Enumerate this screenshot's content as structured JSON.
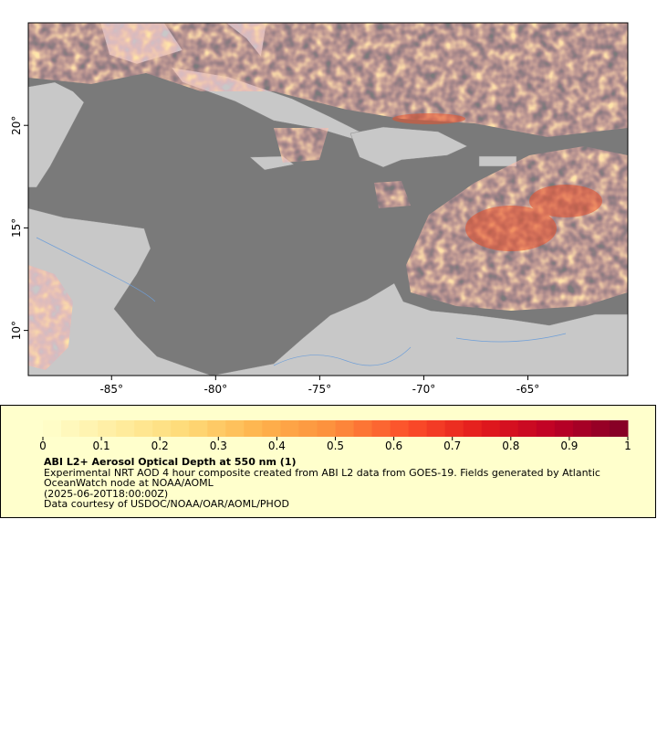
{
  "map": {
    "xlim": [
      -89,
      -60.2
    ],
    "ylim": [
      7.8,
      25
    ],
    "xticks": [
      {
        "value": -85,
        "label": "-85°"
      },
      {
        "value": -80,
        "label": "-80°"
      },
      {
        "value": -75,
        "label": "-75°"
      },
      {
        "value": -70,
        "label": "-70°"
      },
      {
        "value": -65,
        "label": "-65°"
      }
    ],
    "yticks": [
      {
        "value": 10,
        "label": "10°"
      },
      {
        "value": 15,
        "label": "15°"
      },
      {
        "value": 20,
        "label": "20°"
      }
    ]
  },
  "colorbar": {
    "range": [
      0,
      1
    ],
    "ticks": [
      0,
      0.1,
      0.2,
      0.3,
      0.4,
      0.5,
      0.6,
      0.7,
      0.8,
      0.9,
      1
    ],
    "colors": [
      "#ffffcc",
      "#ffeda0",
      "#fed976",
      "#feb24c",
      "#fd8d3c",
      "#fc4e2a",
      "#e31a1c",
      "#bd0026",
      "#800026"
    ]
  },
  "legend": {
    "title": "ABI L2+ Aerosol Optical Depth at 550 nm (1)",
    "description": "Experimental NRT AOD 4 hour composite created from ABI L2 data from GOES-19. Fields generated by Atlantic OceanWatch node at NOAA/AOML",
    "time": "(2025-06-20T18:00:00Z)",
    "credit": "Data courtesy of USDOC/NOAA/OAR/AOML/PHOD"
  }
}
